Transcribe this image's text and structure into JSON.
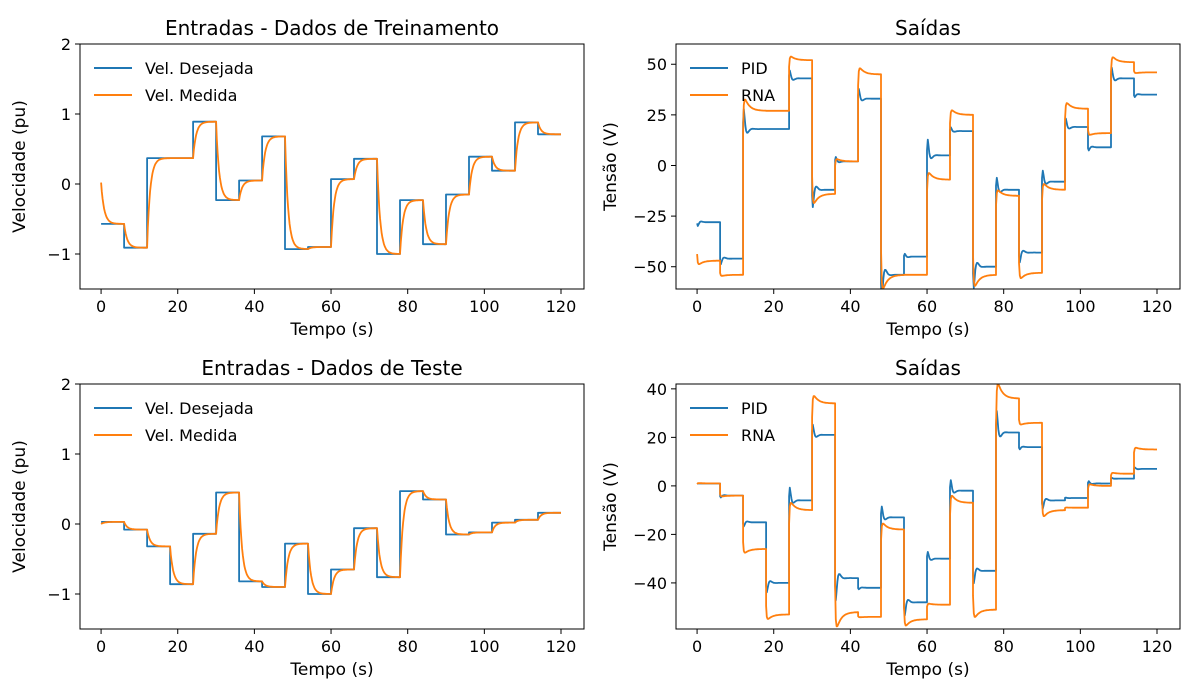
{
  "chart_data": [
    {
      "type": "line",
      "title": "Entradas - Dados de Treinamento",
      "xlabel": "Tempo (s)",
      "ylabel": "Velocidade (pu)",
      "xlim": [
        -5.5,
        126
      ],
      "ylim": [
        -1.5,
        2
      ],
      "xticks": [
        0,
        20,
        40,
        60,
        80,
        100,
        120
      ],
      "yticks": [
        -1,
        0,
        1,
        2
      ],
      "legend": "upper-left",
      "grid": false,
      "x": [
        0,
        6,
        12,
        18,
        24,
        30,
        36,
        42,
        48,
        54,
        60,
        66,
        72,
        78,
        84,
        90,
        96,
        102,
        108,
        114,
        120
      ],
      "series": [
        {
          "name": "Vel. Desejada",
          "color": "#1f77b4",
          "style": "step",
          "values": [
            -0.57,
            -0.91,
            0.37,
            0.37,
            0.89,
            -0.23,
            0.05,
            0.68,
            -0.93,
            -0.9,
            0.07,
            0.36,
            -1.0,
            -0.23,
            -0.86,
            -0.15,
            0.39,
            0.19,
            0.88,
            0.71,
            0.71
          ]
        },
        {
          "name": "Vel. Medida",
          "color": "#ff7f0e",
          "style": "lagged",
          "start": 0.02,
          "values": [
            -0.57,
            -0.91,
            0.37,
            0.37,
            0.89,
            -0.23,
            0.05,
            0.68,
            -0.93,
            -0.9,
            0.07,
            0.36,
            -1.0,
            -0.23,
            -0.86,
            -0.15,
            0.39,
            0.19,
            0.88,
            0.71,
            0.71
          ]
        }
      ]
    },
    {
      "type": "line",
      "title": "Saídas",
      "xlabel": "Tempo (s)",
      "ylabel": "Tensão (V)",
      "xlim": [
        -5.5,
        126
      ],
      "ylim": [
        -61,
        60
      ],
      "xticks": [
        0,
        20,
        40,
        60,
        80,
        100,
        120
      ],
      "yticks": [
        -50,
        -25,
        0,
        25,
        50
      ],
      "legend": "upper-left",
      "grid": false,
      "x": [
        0,
        6,
        12,
        18,
        24,
        30,
        36,
        42,
        48,
        54,
        60,
        66,
        72,
        78,
        84,
        90,
        96,
        102,
        108,
        114,
        120
      ],
      "series": [
        {
          "name": "PID",
          "color": "#1f77b4",
          "style": "pid",
          "start": -16,
          "values": [
            -28,
            -46,
            18,
            18,
            43,
            -12,
            2,
            33,
            -54,
            -45,
            5,
            17,
            -50,
            -12,
            -43,
            -8,
            19,
            9,
            43,
            35,
            35
          ]
        },
        {
          "name": "RNA",
          "color": "#ff7f0e",
          "style": "rna",
          "start": -22,
          "values": [
            -47,
            -54,
            27,
            27,
            52,
            -14,
            2,
            45,
            -54,
            -54,
            -7,
            25,
            -54,
            -15,
            -53,
            -12,
            28,
            16,
            51,
            46,
            46
          ]
        }
      ]
    },
    {
      "type": "line",
      "title": "Entradas - Dados de Teste",
      "xlabel": "Tempo (s)",
      "ylabel": "Velocidade (pu)",
      "xlim": [
        -5.5,
        126
      ],
      "ylim": [
        -1.5,
        2
      ],
      "xticks": [
        0,
        20,
        40,
        60,
        80,
        100,
        120
      ],
      "yticks": [
        -1,
        0,
        1,
        2
      ],
      "legend": "upper-left",
      "grid": false,
      "x": [
        0,
        6,
        12,
        18,
        24,
        30,
        36,
        42,
        48,
        54,
        60,
        66,
        72,
        78,
        84,
        90,
        96,
        102,
        108,
        114,
        120
      ],
      "series": [
        {
          "name": "Vel. Desejada",
          "color": "#1f77b4",
          "style": "step",
          "values": [
            0.03,
            -0.08,
            -0.32,
            -0.86,
            -0.14,
            0.45,
            -0.82,
            -0.9,
            -0.28,
            -1.0,
            -0.65,
            -0.06,
            -0.76,
            0.47,
            0.35,
            -0.15,
            -0.12,
            0.02,
            0.06,
            0.16,
            0.16
          ]
        },
        {
          "name": "Vel. Medida",
          "color": "#ff7f0e",
          "style": "lagged",
          "start": 0.0,
          "values": [
            0.03,
            -0.08,
            -0.32,
            -0.86,
            -0.14,
            0.45,
            -0.82,
            -0.9,
            -0.28,
            -1.0,
            -0.65,
            -0.06,
            -0.76,
            0.47,
            0.35,
            -0.15,
            -0.12,
            0.02,
            0.06,
            0.16,
            0.16
          ]
        }
      ]
    },
    {
      "type": "line",
      "title": "Saídas",
      "xlabel": "Tempo (s)",
      "ylabel": "Tensão (V)",
      "xlim": [
        -5.5,
        126
      ],
      "ylim": [
        -59,
        42
      ],
      "xticks": [
        0,
        20,
        40,
        60,
        80,
        100,
        120
      ],
      "yticks": [
        -40,
        -20,
        0,
        20,
        40
      ],
      "legend": "upper-left",
      "grid": false,
      "x": [
        0,
        6,
        12,
        18,
        24,
        30,
        36,
        42,
        48,
        54,
        60,
        66,
        72,
        78,
        84,
        90,
        96,
        102,
        108,
        114,
        120
      ],
      "series": [
        {
          "name": "PID",
          "color": "#1f77b4",
          "style": "pid",
          "start": 1,
          "values": [
            1,
            -4,
            -15,
            -40,
            -6,
            21,
            -38,
            -42,
            -13,
            -48,
            -30,
            -2,
            -35,
            22,
            16,
            -6,
            -5,
            1,
            3,
            7,
            7
          ]
        },
        {
          "name": "RNA",
          "color": "#ff7f0e",
          "style": "rna",
          "start": -1,
          "values": [
            1,
            -4,
            -26,
            -53,
            -10,
            34,
            -52,
            -54,
            -18,
            -55,
            -49,
            -7,
            -51,
            36,
            26,
            -10,
            -9,
            0,
            5,
            15,
            15
          ]
        }
      ]
    }
  ]
}
